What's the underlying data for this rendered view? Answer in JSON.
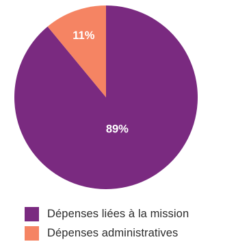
{
  "chart_data": {
    "type": "pie",
    "title": "",
    "slices": [
      {
        "label": "Dépenses liées à la mission",
        "value": 89,
        "value_label": "89%",
        "color": "#7a2a80"
      },
      {
        "label": "Dépenses administratives",
        "value": 11,
        "value_label": "11%",
        "color": "#f58463"
      }
    ],
    "legend_position": "bottom",
    "data_label_color": "#ffffff"
  }
}
